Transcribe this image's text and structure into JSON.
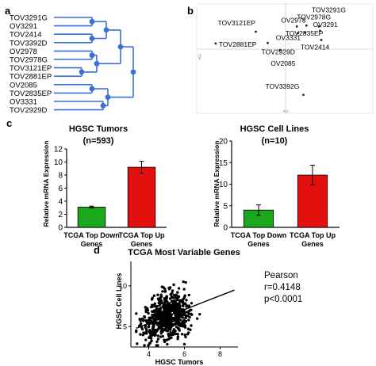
{
  "panel_letters": {
    "a": "a",
    "b": "b",
    "c": "c",
    "d": "d"
  },
  "chart_data": [
    {
      "type": "dendrogram",
      "panel": "a",
      "leaves": [
        "TOV3291G",
        "OV3291",
        "TOV2414",
        "TOV3392D",
        "OV2978",
        "TOV2978G",
        "TOV3121EP",
        "TOV2881EP",
        "OV2085",
        "TOV2835EP",
        "OV3331",
        "TOV2929D"
      ],
      "leaf_color": "#1a1a1a",
      "line_color": "#3a6fd8"
    },
    {
      "type": "scatter",
      "panel": "b",
      "xlabel": "PC1",
      "ylabel": "PC2",
      "points": [
        {
          "label": "TOV3291G",
          "x": 112,
          "y": 52,
          "color": "#222222"
        },
        {
          "label": "OV3291",
          "x": 116,
          "y": 42,
          "color": "#222222"
        },
        {
          "label": "TOV2414",
          "x": 120,
          "y": 21,
          "color": "#3355cc"
        },
        {
          "label": "OV2978",
          "x": 38,
          "y": 52,
          "color": "#222222"
        },
        {
          "label": "TOV2978G",
          "x": 70,
          "y": 54,
          "color": "#222222"
        },
        {
          "label": "TOV3121EP",
          "x": -100,
          "y": 40,
          "color": "#222222"
        },
        {
          "label": "OV3331",
          "x": 42,
          "y": 37,
          "color": "#222222"
        },
        {
          "label": "TOV2835EP",
          "x": 66,
          "y": 38,
          "color": "#222222"
        },
        {
          "label": "TOV2881EP",
          "x": -235,
          "y": 13,
          "color": "#222222"
        },
        {
          "label": "TOV2929D",
          "x": -60,
          "y": 14,
          "color": "#222222"
        },
        {
          "label": "OV2085",
          "x": -18,
          "y": -2,
          "color": "#222222"
        },
        {
          "label": "TOV3392G",
          "x": 60,
          "y": -105,
          "color": "#3355cc"
        }
      ]
    },
    {
      "type": "bar",
      "panel": "c-left",
      "title": "HGSC Tumors",
      "subtitle": "(n=593)",
      "ylabel": "Relative mRNA Expression",
      "ylim": [
        0,
        12
      ],
      "yticks": [
        "0",
        "2",
        "4",
        "6",
        "8",
        "10",
        "12"
      ],
      "categories": [
        [
          "TCGA Top Down",
          "Genes"
        ],
        [
          "TCGA Top Up",
          "Genes"
        ]
      ],
      "values": [
        3.1,
        9.2
      ],
      "errors": [
        0.15,
        0.9
      ],
      "colors": [
        "#1ca81c",
        "#e41010"
      ]
    },
    {
      "type": "bar",
      "panel": "c-right",
      "title": "HGSC Cell Lines",
      "subtitle": "(n=10)",
      "ylabel": "Relative mRNA Expression",
      "ylim": [
        0,
        20
      ],
      "yticks": [
        "0",
        "5",
        "10",
        "15",
        "20"
      ],
      "categories": [
        [
          "TCGA Top Down",
          "Genes"
        ],
        [
          "TCGA Top Up",
          "Genes"
        ]
      ],
      "values": [
        4.0,
        12.1
      ],
      "errors": [
        1.2,
        2.3
      ],
      "colors": [
        "#1ca81c",
        "#e41010"
      ]
    },
    {
      "type": "scatter",
      "panel": "d",
      "title": "TCGA Most Variable Genes",
      "xlabel": "HGSC Tumors",
      "ylabel": "HGSC Cell Lines",
      "xlim": [
        3,
        9
      ],
      "ylim": [
        2.5,
        13
      ],
      "xticks": [
        "4",
        "6",
        "8"
      ],
      "yticks": [
        "5",
        "10"
      ],
      "n_points": 650,
      "fit": {
        "slope": 0.85,
        "intercept": 2.0
      },
      "annotation": [
        "Pearson",
        "r=0.4148",
        "p<0.0001"
      ]
    }
  ]
}
